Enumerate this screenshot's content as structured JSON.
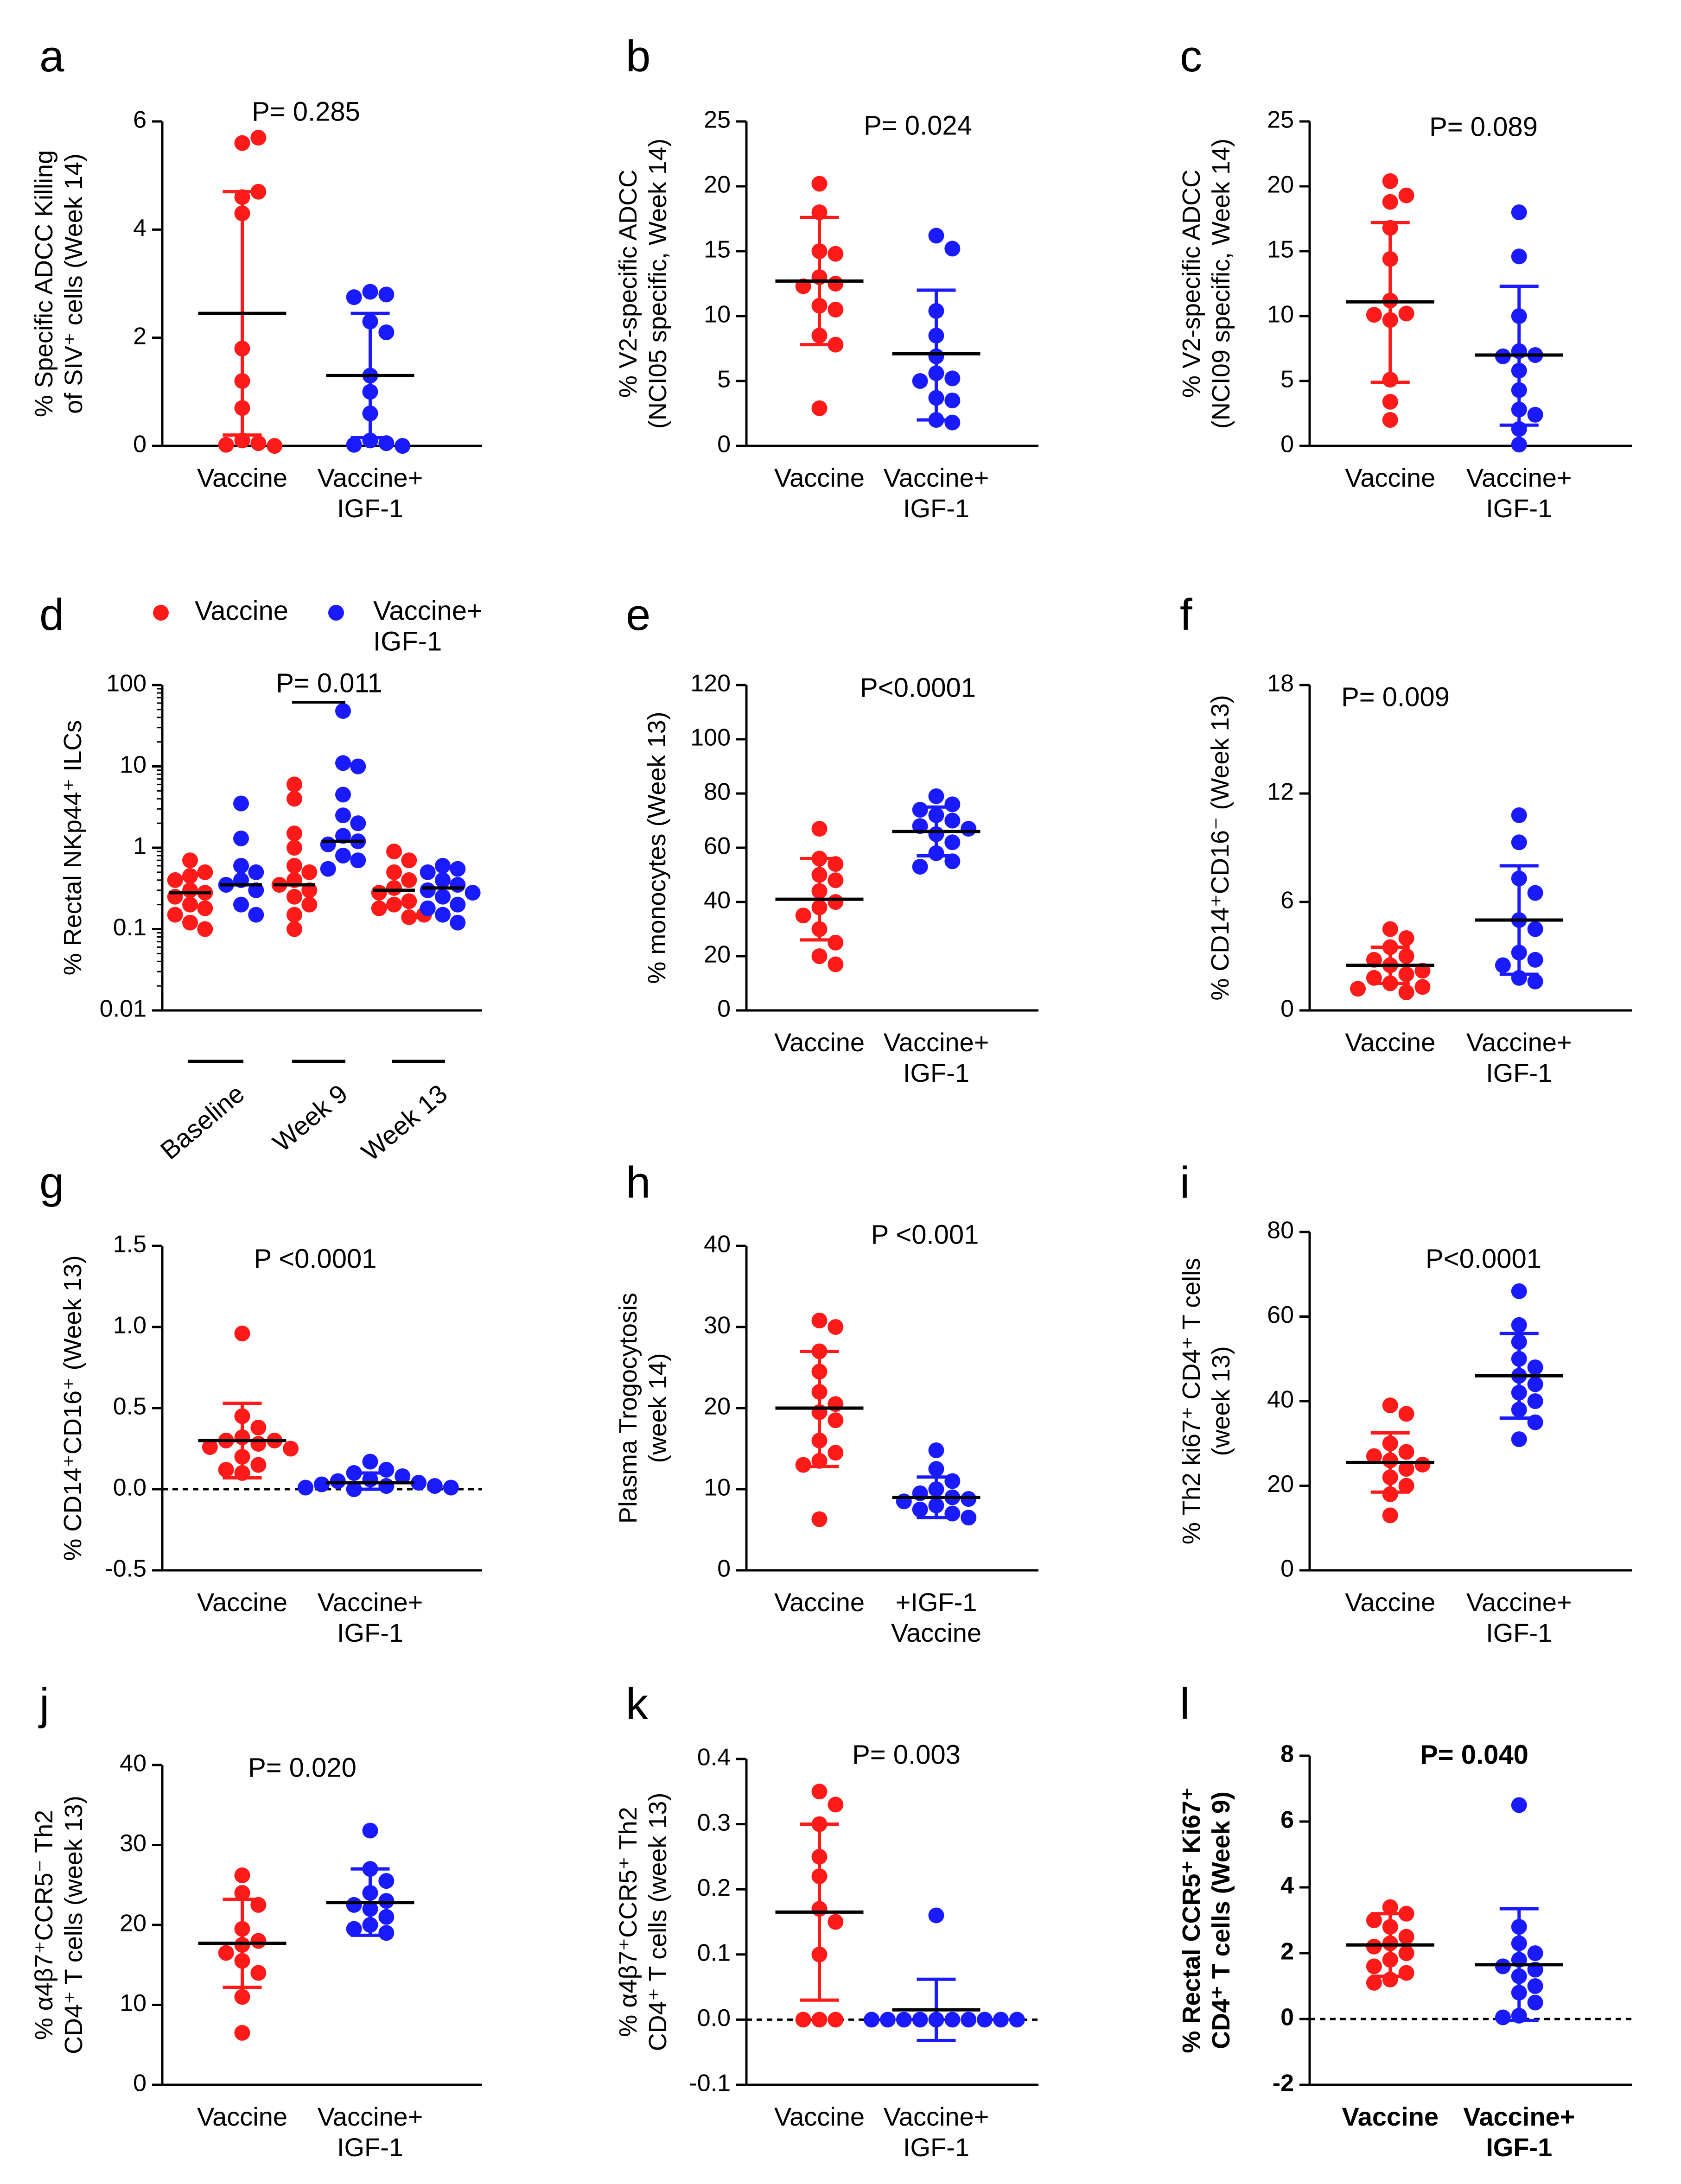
{
  "figure": {
    "colors": {
      "vaccine": "#ff1a1a",
      "igf": "#1a1aff",
      "axis": "#000000"
    },
    "legend": {
      "vaccine": "Vaccine",
      "igf_line1": "Vaccine+",
      "igf_line2": "IGF-1"
    }
  },
  "chart_data": [
    {
      "panel": "a",
      "type": "scatter",
      "pvalue": "P= 0.285",
      "ylabel_lines": [
        "% Specific ADCC Killing",
        "of SIV⁺ cells (Week 14)"
      ],
      "ylim": [
        0,
        6
      ],
      "yticks": [
        "0",
        "2",
        "4",
        "6"
      ],
      "ytick_values": [
        0,
        2,
        4,
        6
      ],
      "categories": [
        [
          "Vaccine"
        ],
        [
          "Vaccine+",
          "IGF-1"
        ]
      ],
      "series": [
        {
          "name": "Vaccine",
          "points": [
            5.6,
            5.7,
            4.6,
            4.7,
            4.3,
            1.8,
            1.2,
            0.7,
            0.1,
            0.05,
            0.02,
            0.0
          ],
          "mean": 2.45,
          "sd_low": 0.2,
          "sd_high": 4.7
        },
        {
          "name": "Vaccine+ IGF-1",
          "points": [
            2.85,
            2.8,
            2.75,
            2.3,
            2.1,
            1.3,
            1.0,
            0.6,
            0.1,
            0.05,
            0.02,
            0.0
          ],
          "mean": 1.3,
          "sd_low": 0.15,
          "sd_high": 2.45
        }
      ]
    },
    {
      "panel": "b",
      "type": "scatter",
      "pvalue": "P= 0.024",
      "ylabel_lines": [
        "% V2-specific ADCC",
        "(NCI05 specific, Week 14)"
      ],
      "ylim": [
        0,
        25
      ],
      "yticks": [
        "0",
        "5",
        "10",
        "15",
        "20",
        "25"
      ],
      "ytick_values": [
        0,
        5,
        10,
        15,
        20,
        25
      ],
      "categories": [
        [
          "Vaccine"
        ],
        [
          "Vaccine+",
          "IGF-1"
        ]
      ],
      "series": [
        {
          "name": "Vaccine",
          "points": [
            20.2,
            18.0,
            15.0,
            14.8,
            13.0,
            12.5,
            12.3,
            10.8,
            10.5,
            8.5,
            7.8,
            2.9
          ],
          "mean": 12.7,
          "sd_low": 7.8,
          "sd_high": 17.6
        },
        {
          "name": "Vaccine+ IGF-1",
          "points": [
            16.2,
            15.2,
            10.4,
            8.5,
            6.9,
            5.6,
            5.2,
            5.0,
            3.7,
            3.5,
            2.0,
            1.8
          ],
          "mean": 7.1,
          "sd_low": 2.0,
          "sd_high": 12.0
        }
      ]
    },
    {
      "panel": "c",
      "type": "scatter",
      "pvalue": "P= 0.089",
      "ylabel_lines": [
        "% V2-specific ADCC",
        "(NCI09 specific, Week 14)"
      ],
      "ylim": [
        0,
        25
      ],
      "yticks": [
        "0",
        "5",
        "10",
        "15",
        "20",
        "25"
      ],
      "ytick_values": [
        0,
        5,
        10,
        15,
        20,
        25
      ],
      "categories": [
        [
          "Vaccine"
        ],
        [
          "Vaccine+",
          "IGF-1"
        ]
      ],
      "series": [
        {
          "name": "Vaccine",
          "points": [
            20.4,
            19.3,
            18.8,
            16.8,
            14.4,
            11.2,
            10.2,
            10.1,
            9.7,
            5.1,
            3.4,
            2.0
          ],
          "mean": 11.1,
          "sd_low": 4.9,
          "sd_high": 17.2
        },
        {
          "name": "Vaccine+ IGF-1",
          "points": [
            18.0,
            14.6,
            10.0,
            7.3,
            7.0,
            6.9,
            5.8,
            4.3,
            2.8,
            2.4,
            1.3,
            0.1
          ],
          "mean": 7.0,
          "sd_low": 1.6,
          "sd_high": 12.3
        }
      ]
    },
    {
      "panel": "d",
      "type": "scatter",
      "yscale": "log",
      "pvalue": "P= 0.011",
      "ylabel_lines": [
        "% Rectal NKp44⁺ ILCs"
      ],
      "ylim": [
        0.01,
        100
      ],
      "yticks": [
        "0.01",
        "0.1",
        "1",
        "10",
        "100"
      ],
      "ytick_values": [
        0.01,
        0.1,
        1,
        10,
        100
      ],
      "groups": [
        "Baseline",
        "Week 9",
        "Week 13"
      ],
      "series": [
        {
          "name": "Vaccine",
          "group": "Baseline",
          "points": [
            0.7,
            0.5,
            0.45,
            0.4,
            0.3,
            0.28,
            0.25,
            0.2,
            0.18,
            0.15,
            0.12,
            0.1
          ],
          "median": 0.28
        },
        {
          "name": "Vaccine+ IGF-1",
          "group": "Baseline",
          "points": [
            3.5,
            1.3,
            0.6,
            0.5,
            0.4,
            0.35,
            0.3,
            0.2,
            0.15
          ],
          "median": 0.35
        },
        {
          "name": "Vaccine",
          "group": "Week 9",
          "points": [
            6.0,
            4.0,
            1.5,
            1.0,
            0.6,
            0.5,
            0.4,
            0.35,
            0.3,
            0.25,
            0.2,
            0.15,
            0.1
          ],
          "median": 0.35
        },
        {
          "name": "Vaccine+ IGF-1",
          "group": "Week 9",
          "points": [
            48,
            11,
            10,
            4.5,
            2.5,
            2.0,
            1.4,
            1.2,
            1.1,
            0.8,
            0.7,
            0.55
          ],
          "median": 1.2
        },
        {
          "name": "Vaccine",
          "group": "Week 13",
          "points": [
            0.9,
            0.7,
            0.5,
            0.4,
            0.32,
            0.28,
            0.22,
            0.2,
            0.18,
            0.15,
            0.14
          ],
          "median": 0.3
        },
        {
          "name": "Vaccine+ IGF-1",
          "group": "Week 13",
          "points": [
            0.6,
            0.55,
            0.5,
            0.4,
            0.35,
            0.3,
            0.28,
            0.25,
            0.2,
            0.18,
            0.15,
            0.12
          ],
          "median": 0.32
        }
      ]
    },
    {
      "panel": "e",
      "type": "scatter",
      "pvalue": "P<0.0001",
      "ylabel_lines": [
        "% monocytes (Week 13)"
      ],
      "ylim": [
        0,
        120
      ],
      "yticks": [
        "0",
        "20",
        "40",
        "60",
        "80",
        "100",
        "120"
      ],
      "ytick_values": [
        0,
        20,
        40,
        60,
        80,
        100,
        120
      ],
      "categories": [
        [
          "Vaccine"
        ],
        [
          "Vaccine+",
          "IGF-1"
        ]
      ],
      "series": [
        {
          "name": "Vaccine",
          "points": [
            67,
            56,
            54,
            50,
            48,
            44,
            40,
            38,
            35,
            30,
            25,
            20,
            17
          ],
          "mean": 41,
          "sd_low": 26,
          "sd_high": 56
        },
        {
          "name": "Vaccine+ IGF-1",
          "points": [
            79,
            76,
            74,
            72,
            70,
            68,
            67,
            65,
            62,
            58,
            55,
            53
          ],
          "mean": 66,
          "sd_low": 57,
          "sd_high": 75
        }
      ]
    },
    {
      "panel": "f",
      "type": "scatter",
      "pvalue": "P= 0.009",
      "ylabel_lines": [
        "% CD14⁺CD16⁻ (Week 13)"
      ],
      "ylim": [
        0,
        18
      ],
      "yticks": [
        "0",
        "6",
        "12",
        "18"
      ],
      "ytick_values": [
        0,
        6,
        12,
        18
      ],
      "categories": [
        [
          "Vaccine"
        ],
        [
          "Vaccine+",
          "IGF-1"
        ]
      ],
      "series": [
        {
          "name": "Vaccine",
          "points": [
            4.5,
            4.0,
            3.5,
            3.0,
            2.8,
            2.5,
            2.2,
            2.0,
            1.8,
            1.5,
            1.3,
            1.2,
            1.0
          ],
          "mean": 2.5,
          "sd_low": 1.5,
          "sd_high": 3.5
        },
        {
          "name": "Vaccine+ IGF-1",
          "points": [
            10.8,
            9.3,
            7.3,
            6.5,
            5.0,
            4.5,
            3.2,
            2.8,
            2.5,
            1.8,
            1.6
          ],
          "mean": 5.0,
          "sd_low": 2.0,
          "sd_high": 8.0
        }
      ]
    },
    {
      "panel": "g",
      "type": "scatter",
      "pvalue": "P <0.0001",
      "ylabel_lines": [
        "% CD14⁺CD16⁺ (Week 13)"
      ],
      "ylim": [
        -0.5,
        1.5
      ],
      "yticks": [
        "-0.5",
        "0.0",
        "0.5",
        "1.0",
        "1.5"
      ],
      "ytick_values": [
        -0.5,
        0.0,
        0.5,
        1.0,
        1.5
      ],
      "zero_line": true,
      "categories": [
        [
          "Vaccine"
        ],
        [
          "Vaccine+",
          "IGF-1"
        ]
      ],
      "series": [
        {
          "name": "Vaccine",
          "points": [
            0.96,
            0.45,
            0.38,
            0.32,
            0.3,
            0.3,
            0.28,
            0.26,
            0.25,
            0.2,
            0.15,
            0.12,
            0.1
          ],
          "mean": 0.3,
          "sd_low": 0.07,
          "sd_high": 0.53
        },
        {
          "name": "Vaccine+ IGF-1",
          "points": [
            0.17,
            0.12,
            0.1,
            0.08,
            0.06,
            0.05,
            0.04,
            0.03,
            0.02,
            0.02,
            0.01,
            0.01,
            0.0
          ],
          "mean": 0.04,
          "sd_low": 0.0,
          "sd_high": 0.1
        }
      ]
    },
    {
      "panel": "h",
      "type": "scatter",
      "pvalue": "P  <0.001",
      "ylabel_lines": [
        "Plasma Trogocytosis",
        "(week 14)"
      ],
      "ylim": [
        0,
        40
      ],
      "yticks": [
        "0",
        "10",
        "20",
        "30",
        "40"
      ],
      "ytick_values": [
        0,
        10,
        20,
        30,
        40
      ],
      "categories": [
        [
          "Vaccine"
        ],
        [
          "+IGF-1",
          "Vaccine"
        ]
      ],
      "series": [
        {
          "name": "Vaccine",
          "points": [
            30.8,
            30.0,
            27.0,
            24.5,
            22.0,
            20.5,
            19.5,
            18.5,
            16.0,
            14.5,
            13.5,
            13.0,
            6.3
          ],
          "mean": 20,
          "sd_low": 12.8,
          "sd_high": 27
        },
        {
          "name": "Vaccine+ IGF-1",
          "points": [
            14.8,
            12.5,
            11.0,
            10.0,
            9.5,
            9.0,
            8.8,
            8.5,
            8.0,
            7.5,
            7.0,
            6.5
          ],
          "mean": 9.0,
          "sd_low": 6.5,
          "sd_high": 11.5
        }
      ]
    },
    {
      "panel": "i",
      "type": "scatter",
      "pvalue": "P<0.0001",
      "ylabel_lines": [
        "% Th2 ki67⁺ CD4⁺ T cells",
        "(week 13)"
      ],
      "ylim": [
        0,
        80
      ],
      "yticks": [
        "0",
        "20",
        "40",
        "60",
        "80"
      ],
      "ytick_values": [
        0,
        20,
        40,
        60,
        80
      ],
      "categories": [
        [
          "Vaccine"
        ],
        [
          "Vaccine+",
          "IGF-1"
        ]
      ],
      "series": [
        {
          "name": "Vaccine",
          "points": [
            39,
            37,
            30,
            28,
            27,
            26,
            25,
            24,
            22,
            20,
            18,
            13
          ],
          "mean": 25.5,
          "sd_low": 18.5,
          "sd_high": 32.5
        },
        {
          "name": "Vaccine+ IGF-1",
          "points": [
            66,
            58,
            54,
            50,
            48,
            46,
            44,
            42,
            40,
            38,
            35,
            31
          ],
          "mean": 46,
          "sd_low": 36,
          "sd_high": 56
        }
      ]
    },
    {
      "panel": "j",
      "type": "scatter",
      "pvalue": "P= 0.020",
      "ylabel_lines": [
        "% α4β7⁺CCR5⁻ Th2",
        "CD4⁺ T cells (week 13)"
      ],
      "ylim": [
        0,
        40
      ],
      "yticks": [
        "0",
        "10",
        "20",
        "30",
        "40"
      ],
      "ytick_values": [
        0,
        10,
        20,
        30,
        40
      ],
      "categories": [
        [
          "Vaccine"
        ],
        [
          "Vaccine+",
          "IGF-1"
        ]
      ],
      "series": [
        {
          "name": "Vaccine",
          "points": [
            26.2,
            24.0,
            22.5,
            19.5,
            18.0,
            17.5,
            16.5,
            15.5,
            14.0,
            11.0,
            6.5
          ],
          "mean": 17.7,
          "sd_low": 12.2,
          "sd_high": 23.2
        },
        {
          "name": "Vaccine+ IGF-1",
          "points": [
            31.8,
            27.0,
            25.5,
            24.0,
            23.0,
            22.5,
            22.0,
            21.0,
            20.0,
            19.5,
            19.0
          ],
          "mean": 22.8,
          "sd_low": 18.7,
          "sd_high": 27.0
        }
      ]
    },
    {
      "panel": "k",
      "type": "scatter",
      "pvalue": "P= 0.003",
      "ylabel_lines": [
        "% α4β7⁺CCR5⁺ Th2",
        "CD4⁺ T cells (week 13)"
      ],
      "ylim": [
        -0.1,
        0.4
      ],
      "yticks": [
        "-0.1",
        "0.0",
        "0.1",
        "0.2",
        "0.3",
        "0.4"
      ],
      "ytick_values": [
        -0.1,
        0.0,
        0.1,
        0.2,
        0.3,
        0.4
      ],
      "zero_line": true,
      "categories": [
        [
          "Vaccine"
        ],
        [
          "Vaccine+",
          "IGF-1"
        ]
      ],
      "series": [
        {
          "name": "Vaccine",
          "points": [
            0.35,
            0.33,
            0.3,
            0.25,
            0.22,
            0.17,
            0.15,
            0.1,
            0.0,
            0.0,
            0.0
          ],
          "mean": 0.165,
          "sd_low": 0.03,
          "sd_high": 0.3
        },
        {
          "name": "Vaccine+ IGF-1",
          "points": [
            0.16,
            0.0,
            0.0,
            0.0,
            0.0,
            0.0,
            0.0,
            0.0,
            0.0,
            0.0,
            0.0
          ],
          "mean": 0.015,
          "sd_low": -0.032,
          "sd_high": 0.062
        }
      ]
    },
    {
      "panel": "l",
      "type": "scatter",
      "bold_labels": true,
      "pvalue": "P= 0.040",
      "ylabel_lines": [
        "% Rectal CCR5⁺ Ki67⁺",
        "CD4⁺ T cells (Week 9)"
      ],
      "ylim": [
        -2,
        8
      ],
      "yticks": [
        "-2",
        "0",
        "2",
        "4",
        "6",
        "8"
      ],
      "ytick_values": [
        -2,
        0,
        2,
        4,
        6,
        8
      ],
      "zero_line": true,
      "categories": [
        [
          "Vaccine"
        ],
        [
          "Vaccine+",
          "IGF-1"
        ]
      ],
      "series": [
        {
          "name": "Vaccine",
          "points": [
            3.4,
            3.2,
            3.0,
            2.8,
            2.5,
            2.3,
            2.2,
            2.0,
            1.8,
            1.6,
            1.4,
            1.2,
            1.1
          ],
          "mean": 2.25,
          "sd_low": 1.3,
          "sd_high": 3.2
        },
        {
          "name": "Vaccine+ IGF-1",
          "points": [
            6.5,
            2.8,
            2.3,
            2.0,
            1.8,
            1.6,
            1.5,
            1.3,
            1.0,
            0.8,
            0.5,
            0.1,
            0.05
          ],
          "mean": 1.65,
          "sd_low": -0.05,
          "sd_high": 3.35
        }
      ]
    }
  ]
}
